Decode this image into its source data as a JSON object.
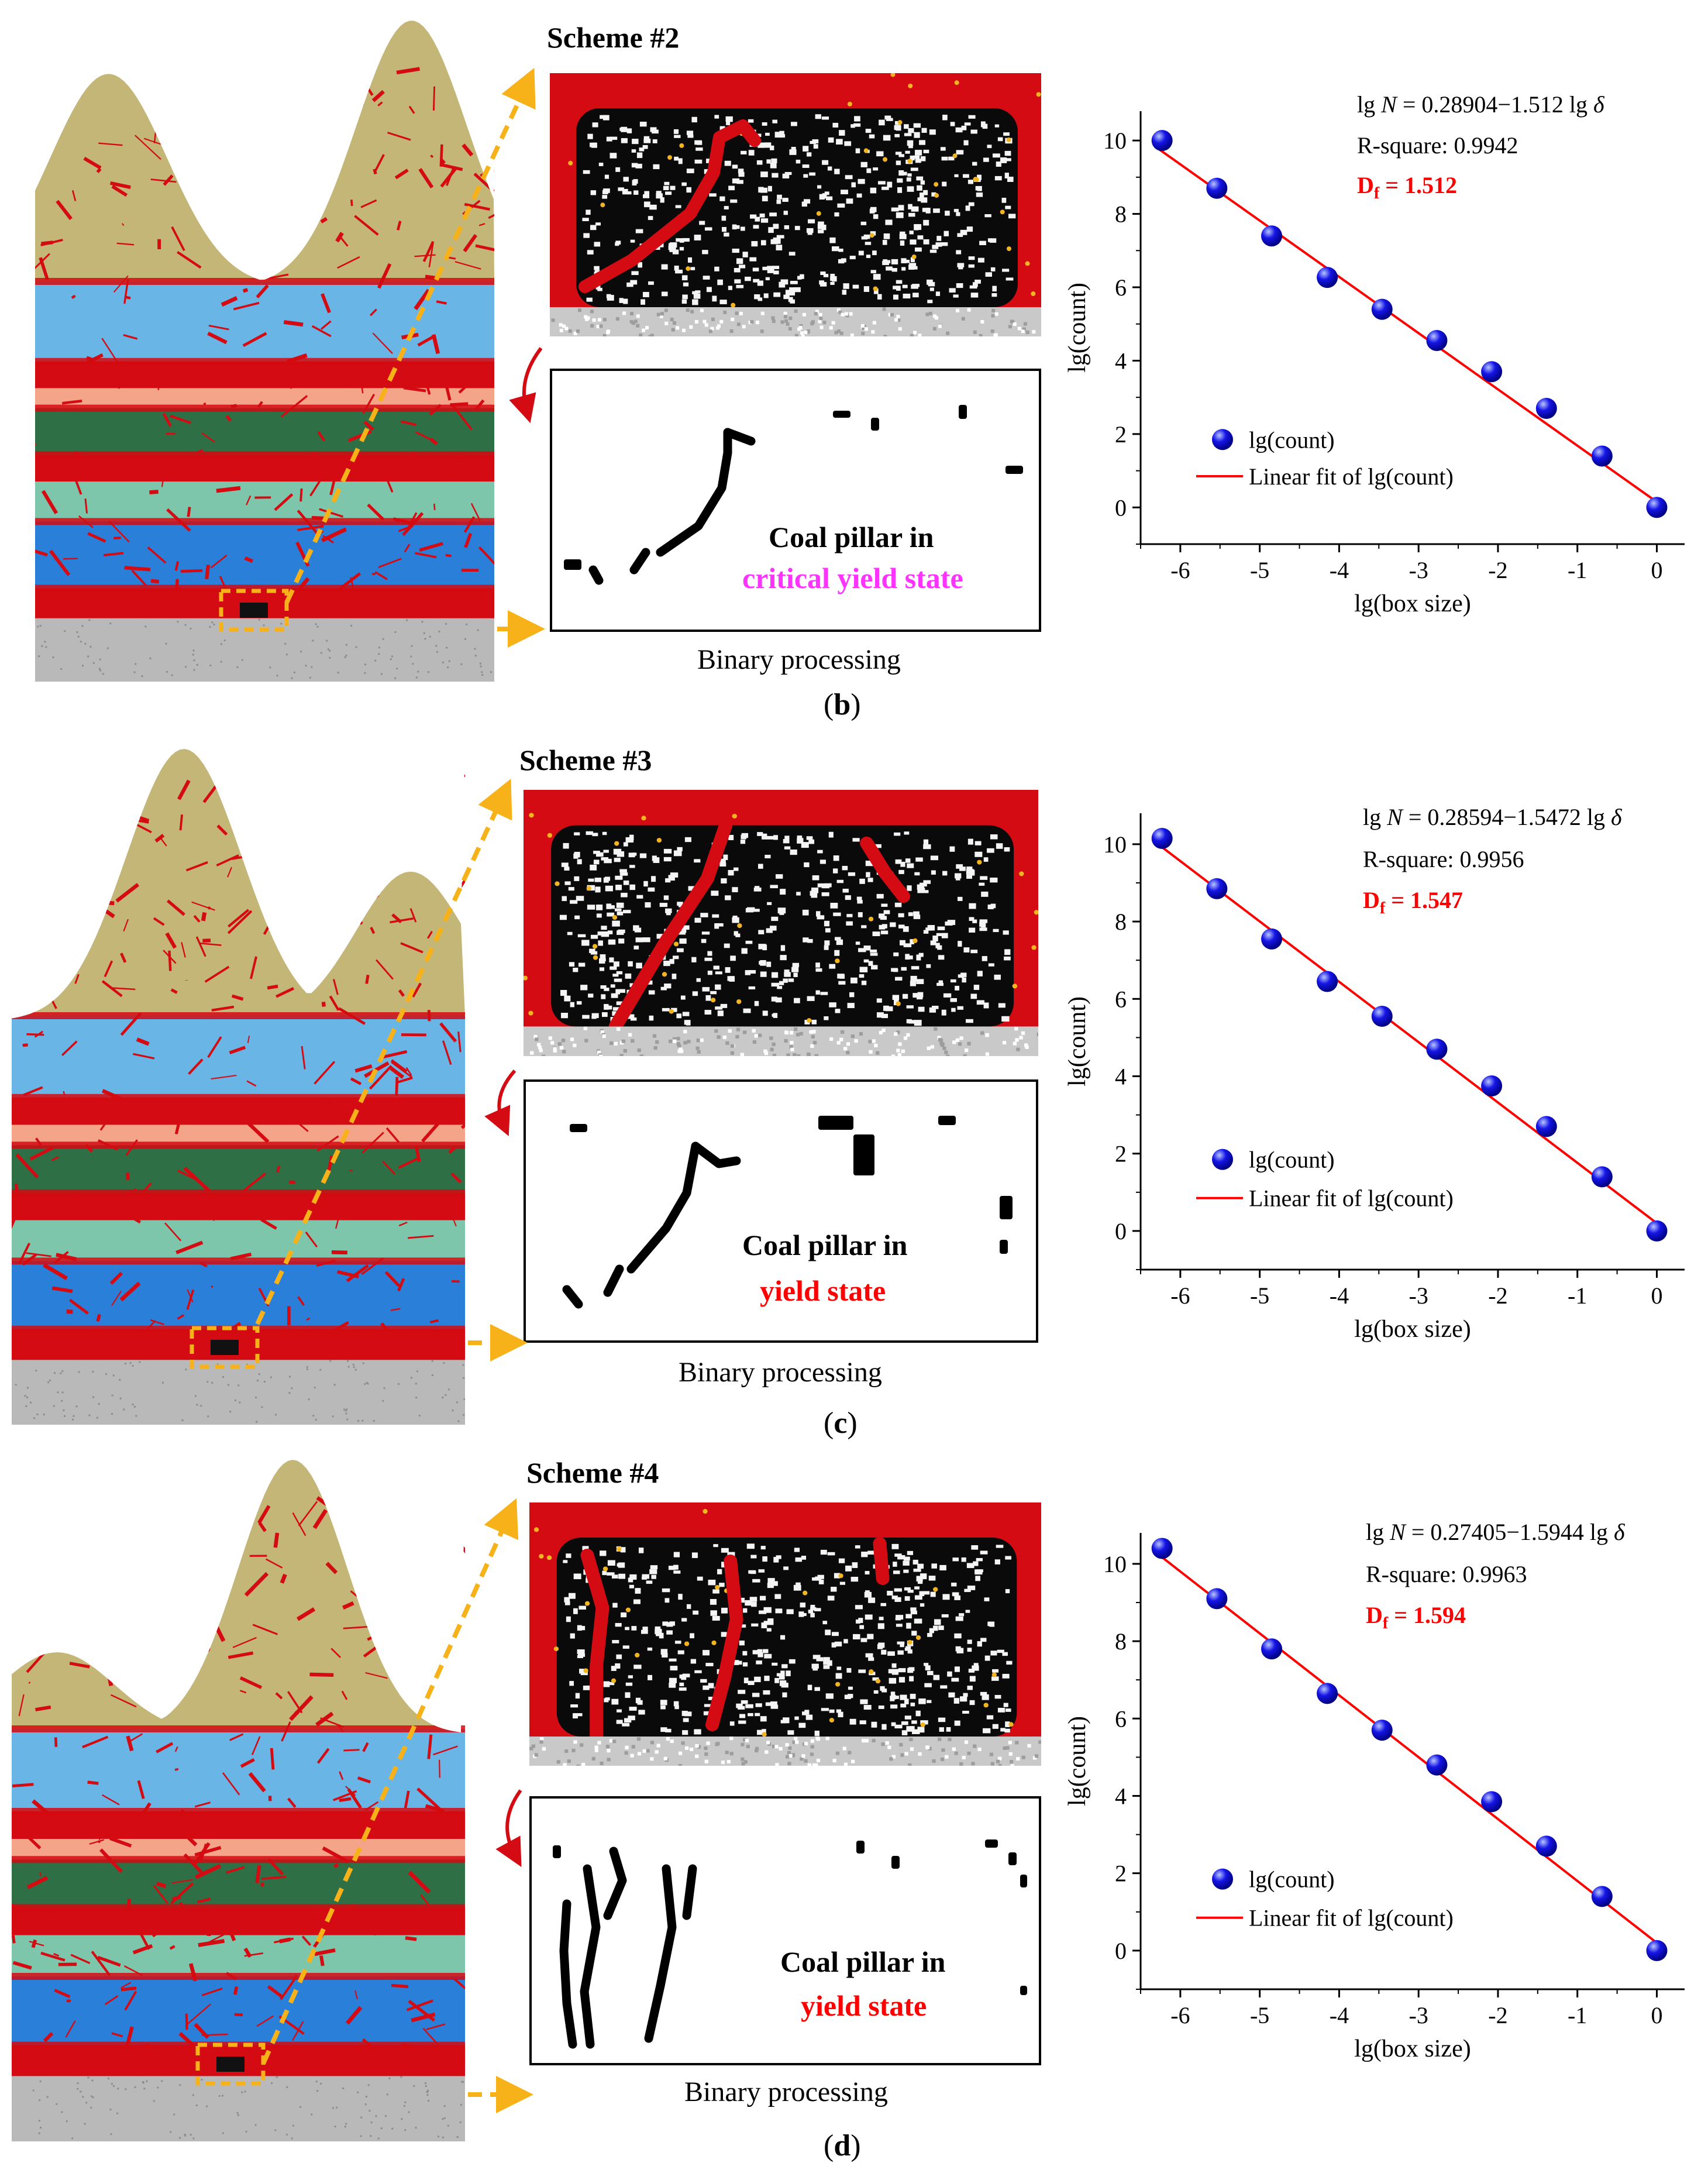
{
  "colors": {
    "sandstone": "#c3b677",
    "crack": "#d40b12",
    "lightblue": "#69b6e6",
    "salmon": "#f4a489",
    "darkgreen": "#2f6f45",
    "teal": "#7ec6ab",
    "blue": "#2a7fd8",
    "floor": "#b9b9b9",
    "dashed": "#f7b21a",
    "fit_line": "#ff0000",
    "marker": "#1515e6",
    "critical": "#ff33ff",
    "yield": "#ff0000"
  },
  "panels": [
    {
      "id": "b",
      "scheme_title": "Scheme #2",
      "binary_line1": "Coal pillar in",
      "binary_line2": "critical yield state",
      "binary_state_color": "#ff33ff",
      "caption": "Binary processing",
      "label_open": "(",
      "label_letter": "b",
      "label_close": ")",
      "equation_prefix": "lg ",
      "equation_N": "N",
      "equation_mid": " = 0.28904−1.512 lg ",
      "equation_delta": "δ",
      "rsquare": "R-square: 0.9942",
      "df_label": "D",
      "df_sub": "f",
      "df_value": " = 1.512",
      "chart_data": {
        "type": "scatter",
        "xlabel": "lg(box size)",
        "ylabel": "lg(count)",
        "xlim": [
          -6.5,
          0.35
        ],
        "ylim": [
          -1.0,
          10.8
        ],
        "xticks": [
          -6,
          -5,
          -4,
          -3,
          -2,
          -1,
          0
        ],
        "yticks": [
          0,
          2,
          4,
          6,
          8,
          10
        ],
        "legend_position": "lower-left",
        "series": [
          {
            "name": "lg(count)",
            "kind": "scatter",
            "x": [
              -6.23,
              -5.54,
              -4.85,
              -4.15,
              -3.46,
              -2.77,
              -2.08,
              -1.39,
              -0.69,
              0
            ],
            "y": [
              10.0,
              8.7,
              7.4,
              6.27,
              5.4,
              4.55,
              3.7,
              2.7,
              1.4,
              0.0
            ]
          },
          {
            "name": "Linear fit of lg(count)",
            "kind": "line",
            "x": [
              -6.28,
              0
            ],
            "y": [
              9.78,
              0.15
            ]
          }
        ]
      }
    },
    {
      "id": "c",
      "scheme_title": "Scheme #3",
      "binary_line1": "Coal pillar in",
      "binary_line2": "yield state",
      "binary_state_color": "#ff0000",
      "caption": "Binary processing",
      "label_open": "(",
      "label_letter": "c",
      "label_close": ")",
      "equation_prefix": "lg ",
      "equation_N": "N",
      "equation_mid": " = 0.28594−1.5472 lg ",
      "equation_delta": "δ",
      "rsquare": "R-square: 0.9956",
      "df_label": "D",
      "df_sub": "f",
      "df_value": " = 1.547",
      "chart_data": {
        "type": "scatter",
        "xlabel": "lg(box size)",
        "ylabel": "lg(count)",
        "xlim": [
          -6.5,
          0.35
        ],
        "ylim": [
          -1.0,
          10.8
        ],
        "xticks": [
          -6,
          -5,
          -4,
          -3,
          -2,
          -1,
          0
        ],
        "yticks": [
          0,
          2,
          4,
          6,
          8,
          10
        ],
        "legend_position": "lower-left",
        "series": [
          {
            "name": "lg(count)",
            "kind": "scatter",
            "x": [
              -6.23,
              -5.54,
              -4.85,
              -4.15,
              -3.46,
              -2.77,
              -2.08,
              -1.39,
              -0.69,
              0
            ],
            "y": [
              10.15,
              8.85,
              7.55,
              6.45,
              5.55,
              4.7,
              3.75,
              2.7,
              1.4,
              0.0
            ]
          },
          {
            "name": "Linear fit of lg(count)",
            "kind": "line",
            "x": [
              -6.28,
              0
            ],
            "y": [
              10.0,
              0.2
            ]
          }
        ]
      }
    },
    {
      "id": "d",
      "scheme_title": "Scheme #4",
      "binary_line1": "Coal pillar in",
      "binary_line2": "yield state",
      "binary_state_color": "#ff0000",
      "caption": "Binary processing",
      "label_open": "(",
      "label_letter": "d",
      "label_close": ")",
      "equation_prefix": "lg ",
      "equation_N": "N",
      "equation_mid": " = 0.27405−1.5944 lg ",
      "equation_delta": "δ",
      "rsquare": "R-square: 0.9963",
      "df_label": "D",
      "df_sub": "f",
      "df_value": " = 1.594",
      "chart_data": {
        "type": "scatter",
        "xlabel": "lg(box size)",
        "ylabel": "lg(count)",
        "xlim": [
          -6.5,
          0.35
        ],
        "ylim": [
          -1.0,
          10.8
        ],
        "xticks": [
          -6,
          -5,
          -4,
          -3,
          -2,
          -1,
          0
        ],
        "yticks": [
          0,
          2,
          4,
          6,
          8,
          10
        ],
        "legend_position": "lower-left",
        "series": [
          {
            "name": "lg(count)",
            "kind": "scatter",
            "x": [
              -6.23,
              -5.54,
              -4.85,
              -4.15,
              -3.46,
              -2.77,
              -2.08,
              -1.39,
              -0.69,
              0
            ],
            "y": [
              10.4,
              9.1,
              7.8,
              6.65,
              5.7,
              4.8,
              3.85,
              2.7,
              1.4,
              0.0
            ]
          },
          {
            "name": "Linear fit of lg(count)",
            "kind": "line",
            "x": [
              -6.28,
              0
            ],
            "y": [
              10.25,
              0.2
            ]
          }
        ]
      }
    }
  ]
}
